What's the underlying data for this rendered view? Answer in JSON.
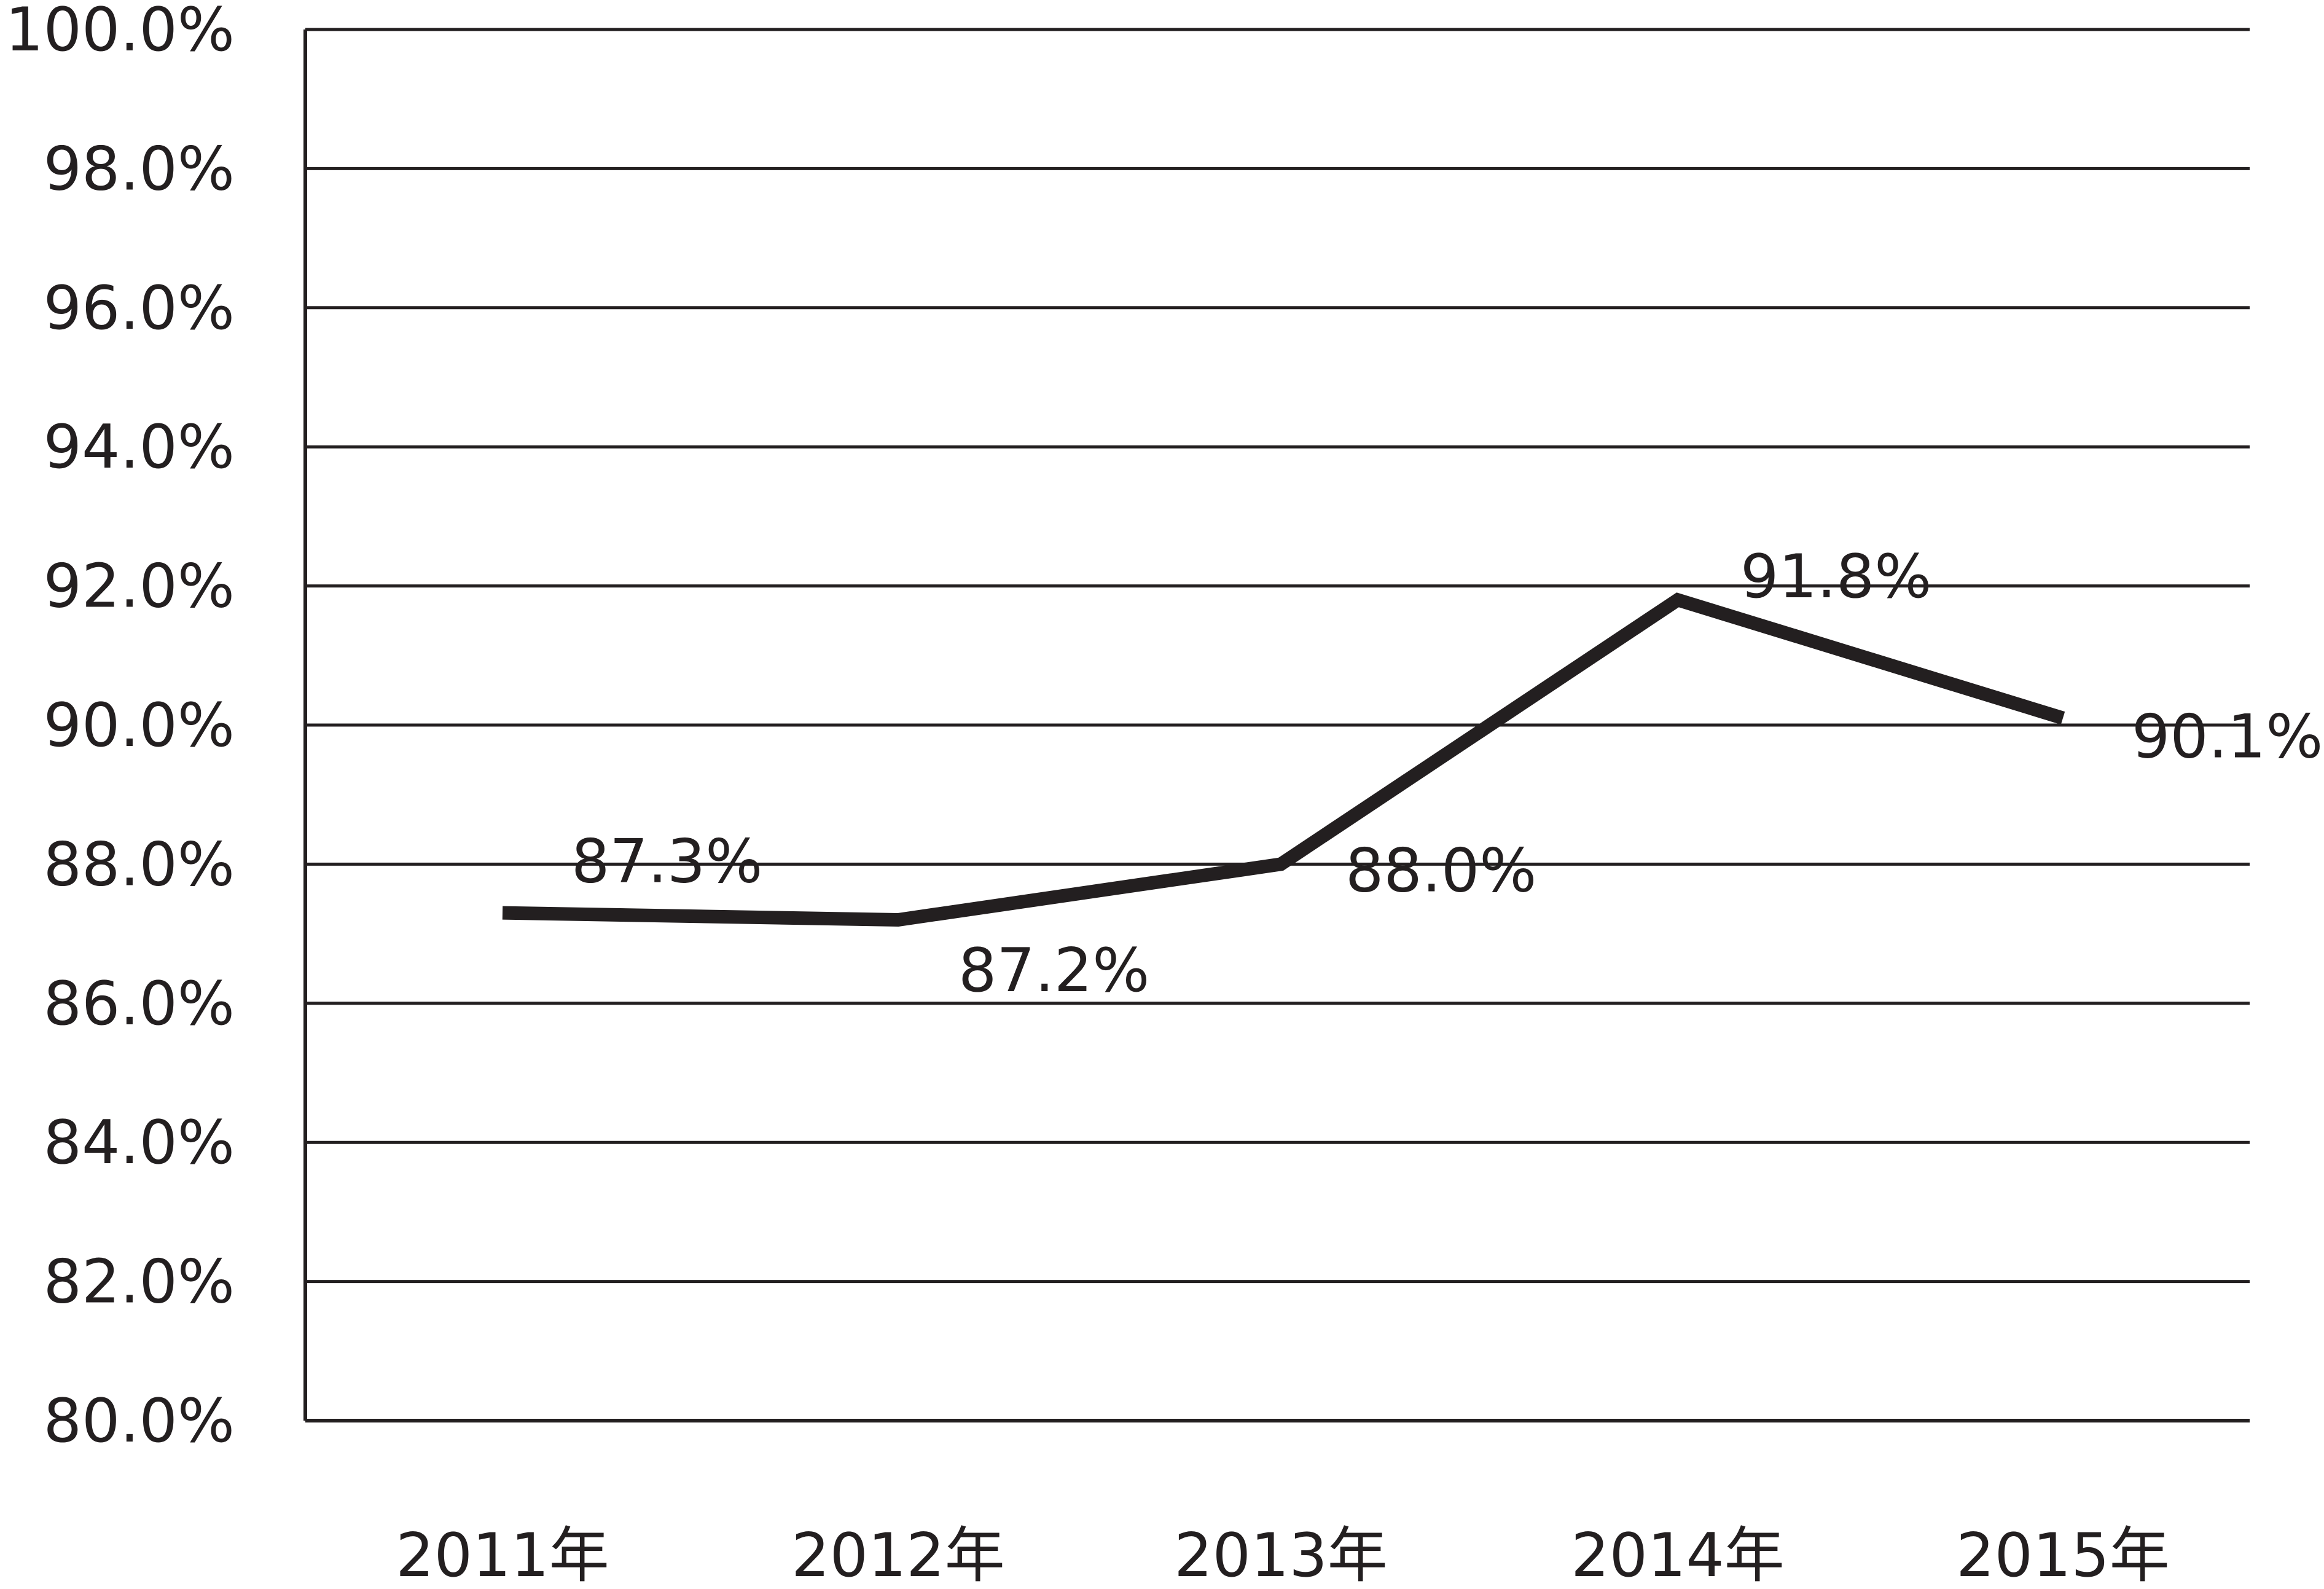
{
  "chart_data": {
    "type": "line",
    "title": "",
    "xlabel": "",
    "ylabel": "",
    "categories": [
      "2011年",
      "2012年",
      "2013年",
      "2014年",
      "2015年"
    ],
    "series": [
      {
        "values": [
          87.3,
          87.2,
          88.0,
          91.8,
          90.1
        ],
        "data_labels": [
          "87.3%",
          "87.2%",
          "88.0%",
          "91.8%",
          "90.1%"
        ]
      }
    ],
    "ylim": [
      80,
      100
    ],
    "yticks": [
      80,
      82,
      84,
      86,
      88,
      90,
      92,
      94,
      96,
      98,
      100
    ],
    "ytick_labels": [
      "80.0%",
      "82.0%",
      "84.0%",
      "86.0%",
      "88.0%",
      "90.0%",
      "92.0%",
      "94.0%",
      "96.0%",
      "98.0%",
      "100.0%"
    ],
    "grid": true,
    "legend": "none",
    "colors": {
      "line": "#231f20",
      "grid": "#231f20",
      "text": "#231f20",
      "background": "#ffffff"
    }
  }
}
